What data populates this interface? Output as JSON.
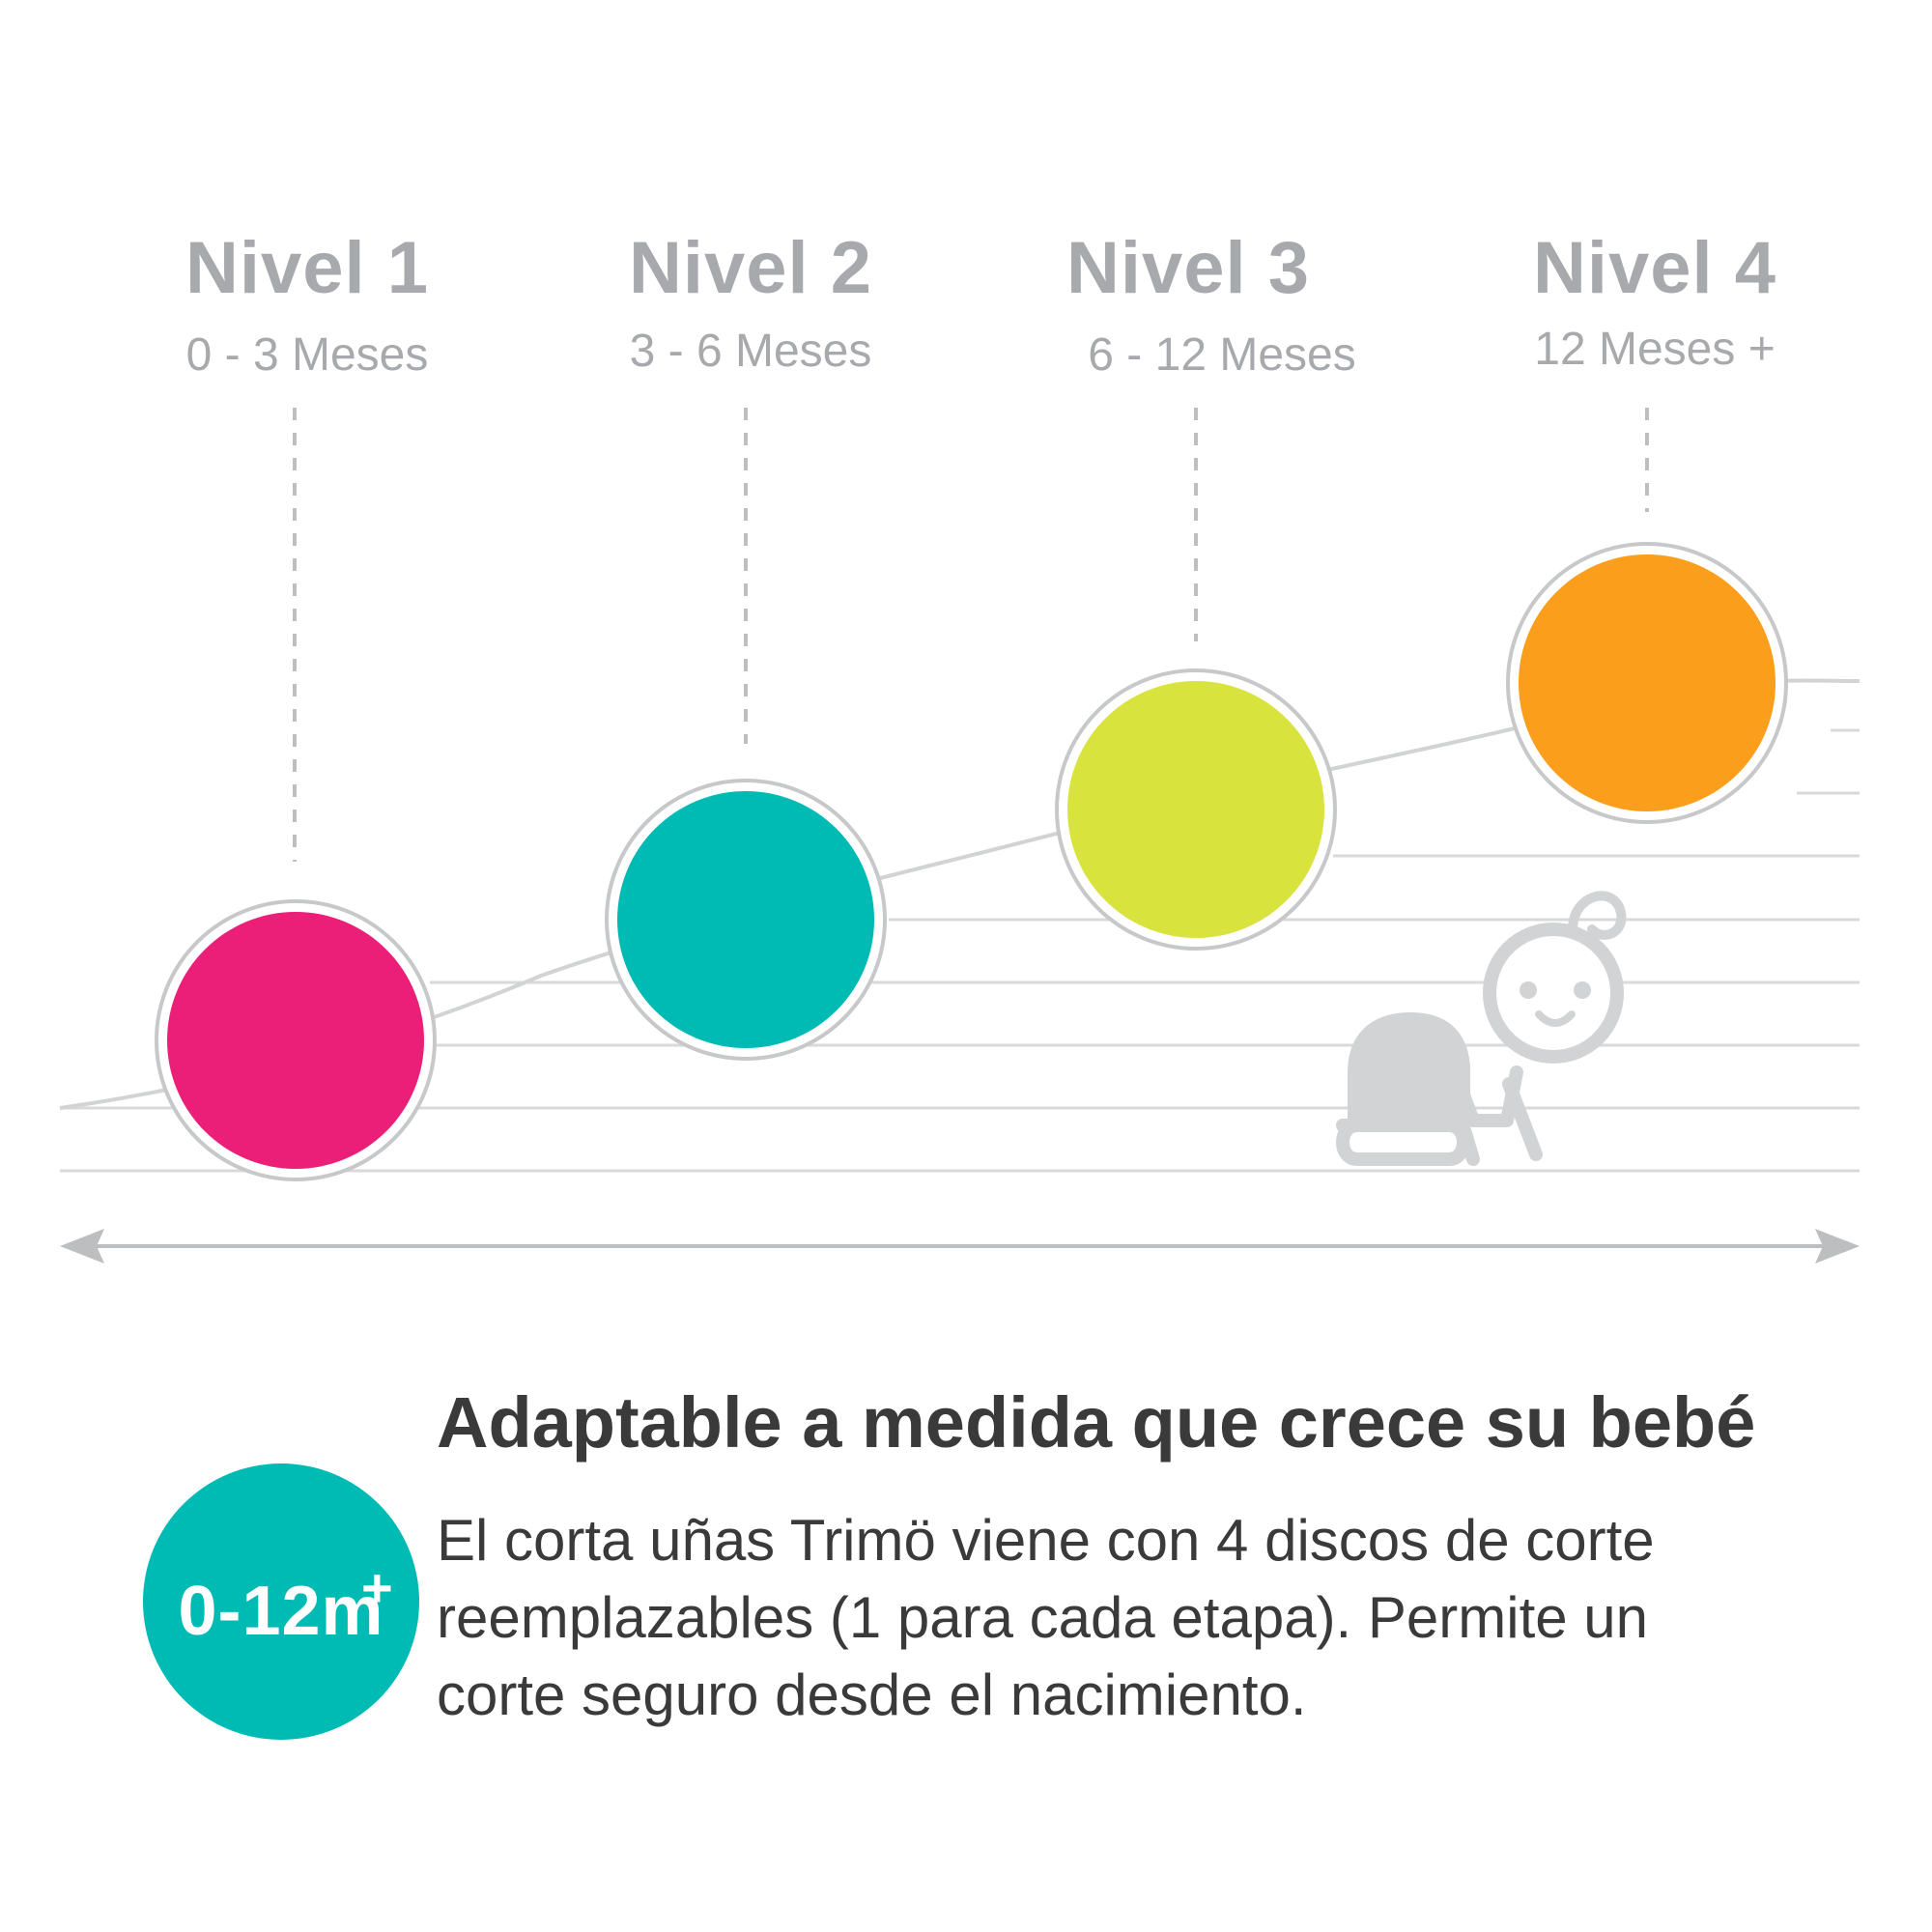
{
  "levels": [
    {
      "title": "Nivel 1",
      "range": "0 - 3 Meses",
      "color": "#eb1e78"
    },
    {
      "title": "Nivel 2",
      "range": "3 - 6 Meses",
      "color": "#00bab4"
    },
    {
      "title": "Nivel 3",
      "range": "6 - 12 Meses",
      "color": "#d9e33e"
    },
    {
      "title": "Nivel 4",
      "range": "12 Meses +",
      "color": "#fb9e1b"
    }
  ],
  "headline": "Adaptable a medida que crece su bebé",
  "description_lines": [
    "El corta uñas Trimö viene con 4 discos de corte",
    "reemplazables (1 para cada etapa). Permite un",
    "corte seguro desde el nacimiento."
  ],
  "badge": {
    "text": "0-12m",
    "superscript": "+",
    "color": "#00bab4"
  },
  "icons": {
    "growth_arrow": "double-headed-arrow-icon",
    "baby": "crawling-baby-icon"
  },
  "colors": {
    "line_gray": "#d1d3d4",
    "text_gray": "#a7a9ac",
    "dark_text": "#3a3a3a"
  }
}
